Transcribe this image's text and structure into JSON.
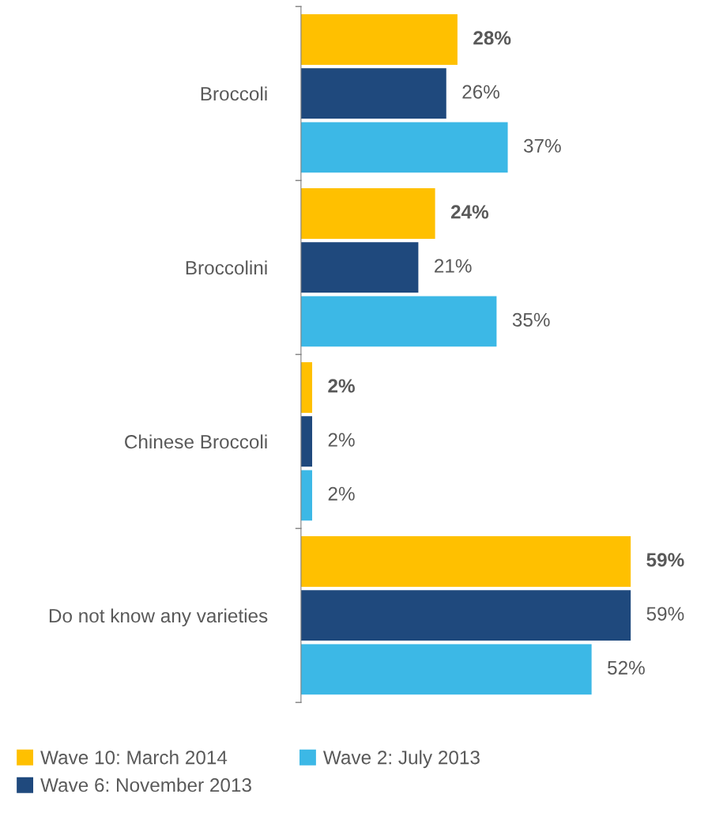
{
  "chart_data": {
    "type": "bar",
    "orientation": "horizontal",
    "categories": [
      "Broccoli",
      "Broccolini",
      "Chinese Broccoli",
      "Do not know any varieties"
    ],
    "series": [
      {
        "name": "Wave 10: March 2014",
        "color": "#ffc000",
        "values": [
          28,
          24,
          2,
          59
        ],
        "value_labels": [
          "28%",
          "24%",
          "2%",
          "59%"
        ]
      },
      {
        "name": "Wave 6: November 2013",
        "color": "#1f497d",
        "values": [
          26,
          21,
          2,
          59
        ],
        "value_labels": [
          "26%",
          "21%",
          "2%",
          "59%"
        ]
      },
      {
        "name": "Wave 2: July 2013",
        "color": "#3cb8e6",
        "values": [
          37,
          35,
          2,
          52
        ],
        "value_labels": [
          "37%",
          "35%",
          "2%",
          "52%"
        ]
      }
    ],
    "legend": "bottom",
    "grid": false
  }
}
